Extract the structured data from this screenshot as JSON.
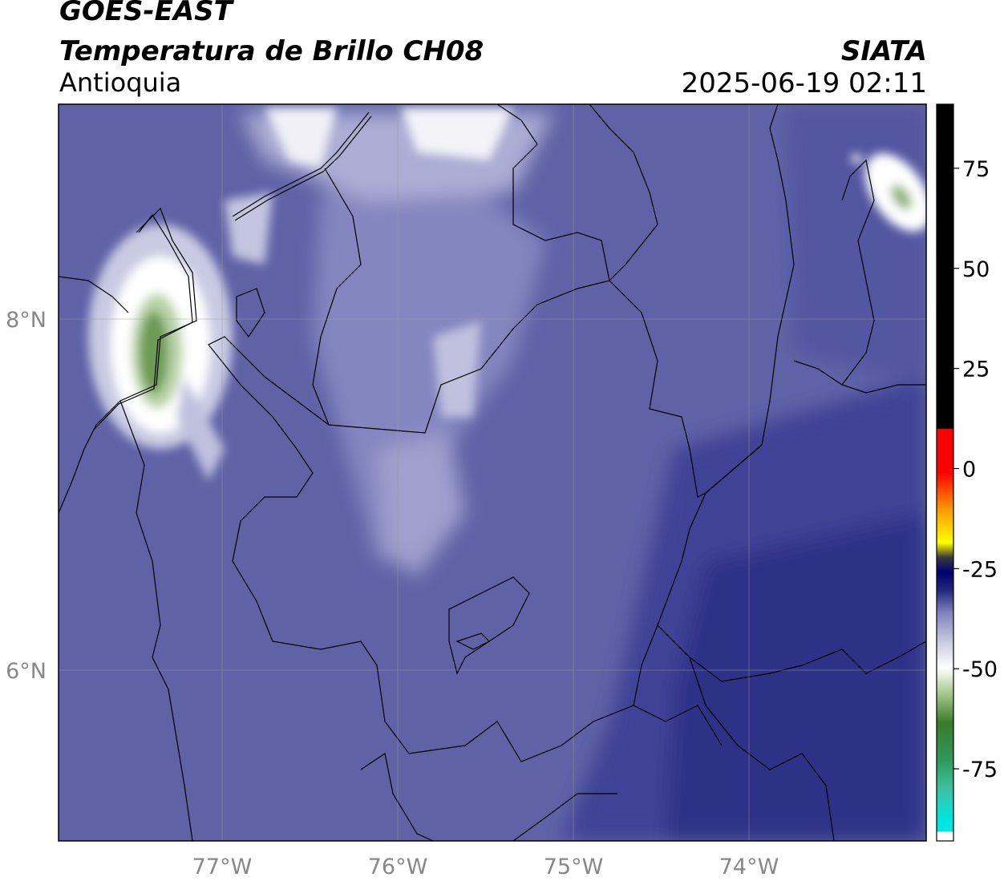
{
  "header": {
    "satellite": "GOES-EAST",
    "product": "Temperatura de Brillo CH08",
    "region": "Antioquia",
    "agency": "SIATA",
    "timestamp": "2025-06-19 02:11"
  },
  "map": {
    "lon_labels": [
      "77°W",
      "76°W",
      "75°W",
      "74°W"
    ],
    "lat_labels": [
      "8°N",
      "6°N"
    ],
    "base_color": "#5f63a6"
  },
  "colorbar": {
    "ticks": [
      "75",
      "50",
      "25",
      "0",
      "-25",
      "-50",
      "-75"
    ],
    "tick_values": [
      75,
      50,
      25,
      0,
      -25,
      -50,
      -75
    ],
    "range": [
      -93,
      91
    ]
  }
}
